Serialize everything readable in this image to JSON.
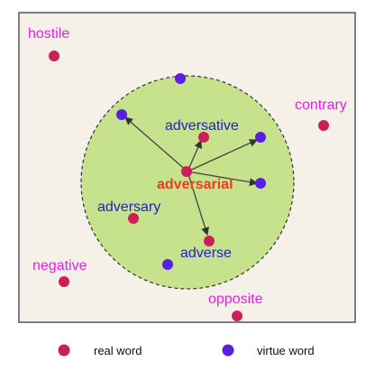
{
  "colors": {
    "background_box": "#f6f1e8",
    "circle_fill": "#c6e28d",
    "real_word_dot": "#cc1f5a",
    "virtue_word_dot": "#5a1fe0",
    "label_outside": "#e81ee8",
    "label_inside": "#1f1fd0",
    "label_center": "#e8401a",
    "arrow": "#444444"
  },
  "words": {
    "hostile": "hostile",
    "contrary": "contrary",
    "negative": "negative",
    "opposite": "opposite",
    "adversative": "adversative",
    "adversarial": "adversarial",
    "adversary": "adversary",
    "adverse": "adverse"
  },
  "legend": {
    "real_word": "real word",
    "virtue_word": "virtue word"
  }
}
